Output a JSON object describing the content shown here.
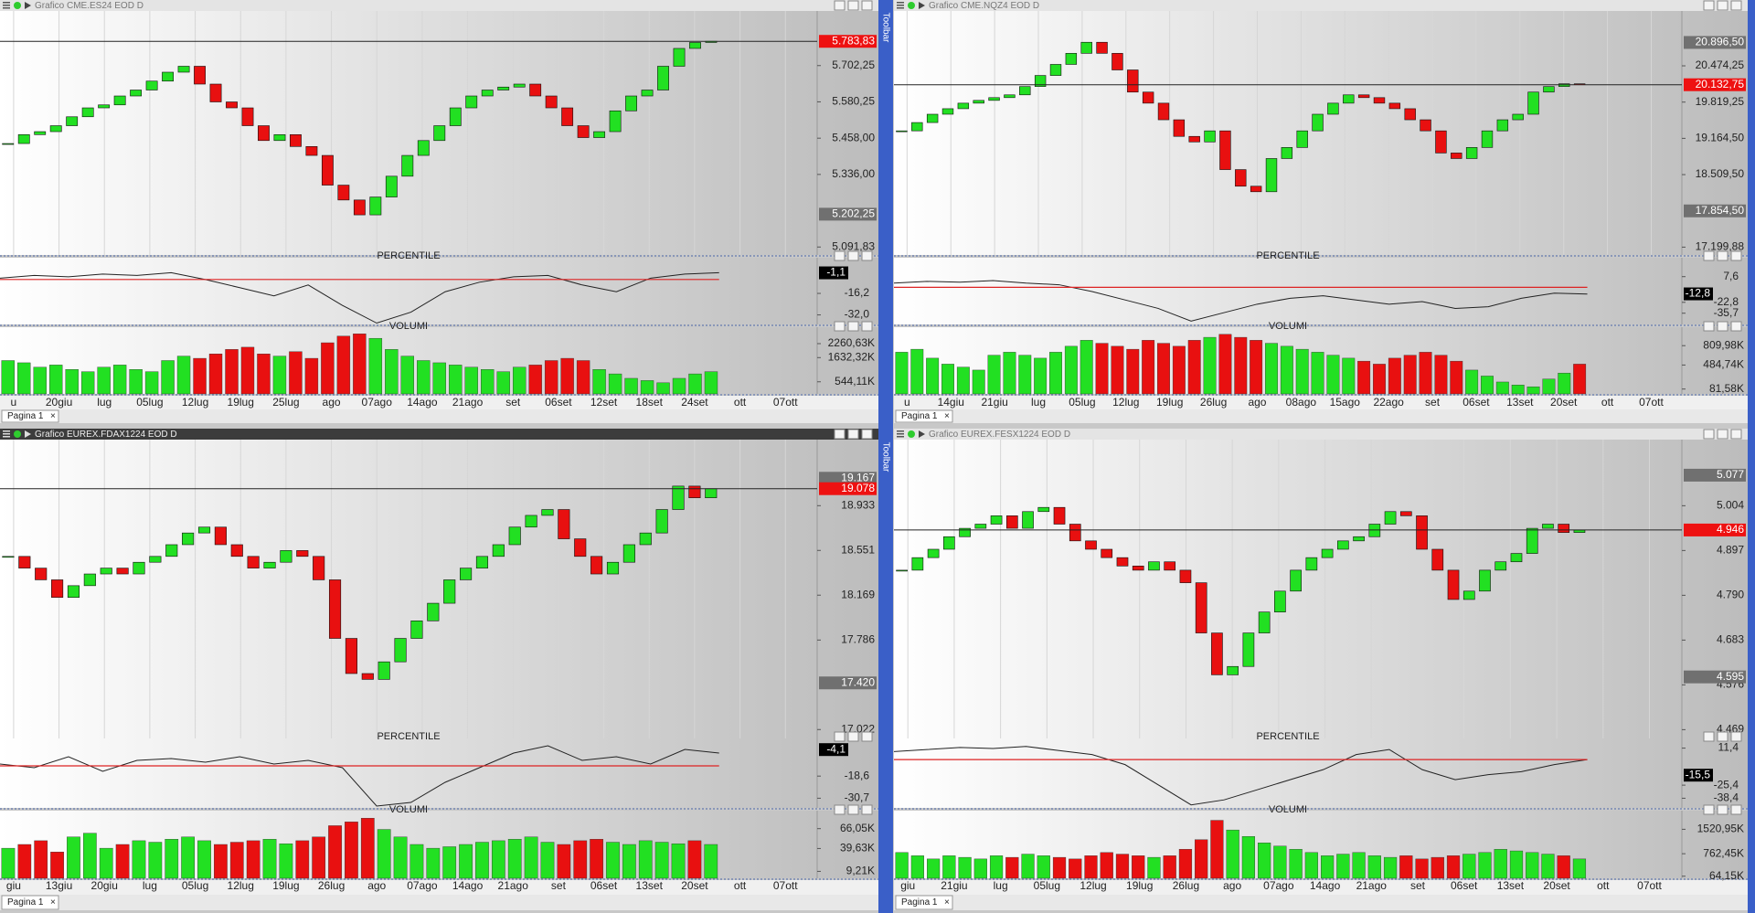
{
  "toolbar": "Toolbar",
  "panels": [
    {
      "title": "Grafico CME.ES24 EOD D",
      "price": {
        "ylim": [
          5065,
          5886
        ],
        "yticks": [
          {
            "value": 5702.25,
            "label": "5.702,25"
          },
          {
            "value": 5580.25,
            "label": "5.580,25"
          },
          {
            "value": 5458,
            "label": "5.458,00"
          },
          {
            "value": 5336,
            "label": "5.336,00"
          },
          {
            "value": 5091.83,
            "label": "5.091,83"
          }
        ],
        "last": {
          "value": 5783.83,
          "label": "5.783,83"
        },
        "marks": [
          {
            "value": 5202.25,
            "label": "5.202,25"
          }
        ],
        "closes": [
          5440,
          5470,
          5480,
          5500,
          5530,
          5560,
          5570,
          5600,
          5620,
          5650,
          5680,
          5700,
          5640,
          5580,
          5560,
          5500,
          5450,
          5470,
          5430,
          5400,
          5300,
          5250,
          5200,
          5260,
          5330,
          5400,
          5450,
          5500,
          5560,
          5600,
          5620,
          5630,
          5640,
          5600,
          5560,
          5500,
          5460,
          5480,
          5550,
          5600,
          5620,
          5700,
          5760,
          5780,
          5784
        ]
      },
      "percentile": {
        "label": "PERCENTILE",
        "plim": [
          -39,
          10
        ],
        "ticks": [
          {
            "value": -16.2,
            "label": "-16,2"
          },
          {
            "value": -32,
            "label": "-32,0"
          }
        ],
        "box": {
          "value": -1.1,
          "label": "-1,1"
        },
        "ref": -6,
        "values": [
          -5,
          -3,
          -4,
          -2,
          -3,
          -1,
          -6,
          -12,
          -18,
          -10,
          -25,
          -38,
          -30,
          -15,
          -8,
          -4,
          -3,
          -10,
          -15,
          -5,
          -2,
          -1
        ]
      },
      "volume": {
        "label": "VOLUMI",
        "vlim": [
          0,
          3000
        ],
        "ticks": [
          {
            "value": 2260.63,
            "label": "2260,63K"
          },
          {
            "value": 1632.32,
            "label": "1632,32K"
          },
          {
            "value": 544.11,
            "label": "544,11K"
          }
        ],
        "values": [
          1500,
          1400,
          1200,
          1300,
          1100,
          1000,
          1200,
          1300,
          1100,
          1000,
          1500,
          1700,
          1600,
          1800,
          2000,
          2100,
          1800,
          1700,
          1900,
          1600,
          2300,
          2600,
          2700,
          2500,
          2000,
          1700,
          1500,
          1400,
          1300,
          1200,
          1100,
          1000,
          1200,
          1300,
          1500,
          1600,
          1500,
          1100,
          900,
          700,
          600,
          500,
          700,
          900,
          1000
        ]
      },
      "dates": [
        "u",
        "20giu",
        "lug",
        "05lug",
        "12lug",
        "19lug",
        "25lug",
        "ago",
        "07ago",
        "14ago",
        "21ago",
        "set",
        "06set",
        "12set",
        "18set",
        "24set",
        "ott",
        "07ott"
      ],
      "tab": {
        "label": "Pagina 1",
        "close": "×"
      }
    },
    {
      "title": "Grafico CME.NQZ4 EOD D",
      "price": {
        "ylim": [
          17058,
          21465
        ],
        "yticks": [
          {
            "value": 20474.25,
            "label": "20.474,25"
          },
          {
            "value": 19819.25,
            "label": "19.819,25"
          },
          {
            "value": 19164.5,
            "label": "19.164,50"
          },
          {
            "value": 18509.5,
            "label": "18.509,50"
          },
          {
            "value": 17199.88,
            "label": "17.199,88"
          }
        ],
        "last": {
          "value": 20132.75,
          "label": "20.132,75"
        },
        "marks": [
          {
            "value": 20896.5,
            "label": "20.896,50"
          },
          {
            "value": 17854.5,
            "label": "17.854,50"
          }
        ],
        "closes": [
          19300,
          19450,
          19600,
          19700,
          19800,
          19850,
          19900,
          19950,
          20100,
          20300,
          20500,
          20700,
          20900,
          20700,
          20400,
          20000,
          19800,
          19500,
          19200,
          19100,
          19300,
          18600,
          18300,
          18200,
          18800,
          19000,
          19300,
          19600,
          19800,
          19950,
          19900,
          19800,
          19700,
          19500,
          19300,
          18900,
          18800,
          19000,
          19300,
          19500,
          19600,
          20000,
          20100,
          20150,
          20133
        ]
      },
      "percentile": {
        "label": "PERCENTILE",
        "plim": [
          -49,
          30
        ],
        "ticks": [
          {
            "value": 7.6,
            "label": "7,6"
          },
          {
            "value": -22.8,
            "label": "-22,8"
          },
          {
            "value": -35.7,
            "label": "-35,7"
          }
        ],
        "box": {
          "value": -12.8,
          "label": "-12,8"
        },
        "ref": -5,
        "values": [
          0,
          2,
          1,
          3,
          0,
          -2,
          -10,
          -20,
          -30,
          -45,
          -35,
          -25,
          -18,
          -15,
          -20,
          -25,
          -22,
          -30,
          -28,
          -18,
          -12,
          -13
        ]
      },
      "volume": {
        "label": "VOLUMI",
        "vlim": [
          0,
          1120
        ],
        "ticks": [
          {
            "value": 809.98,
            "label": "809,98K"
          },
          {
            "value": 484.74,
            "label": "484,74K"
          },
          {
            "value": 81.58,
            "label": "81,58K"
          }
        ],
        "values": [
          700,
          750,
          600,
          500,
          450,
          400,
          650,
          700,
          650,
          600,
          700,
          800,
          900,
          850,
          800,
          750,
          900,
          850,
          800,
          900,
          950,
          1000,
          950,
          900,
          850,
          800,
          750,
          700,
          650,
          600,
          550,
          500,
          600,
          650,
          700,
          650,
          550,
          400,
          300,
          200,
          150,
          120,
          250,
          350,
          500
        ]
      },
      "dates": [
        "u",
        "14giu",
        "21giu",
        "lug",
        "05lug",
        "12lug",
        "19lug",
        "26lug",
        "ago",
        "08ago",
        "15ago",
        "22ago",
        "set",
        "06set",
        "13set",
        "20set",
        "ott",
        "07ott"
      ],
      "tab": {
        "label": "Pagina 1",
        "close": "×"
      }
    },
    {
      "title": "Grafico EUREX.FDAX1224 EOD D",
      "price": {
        "ylim": [
          16946,
          19497
        ],
        "yticks": [
          {
            "value": 18933,
            "label": "18.933"
          },
          {
            "value": 18551,
            "label": "18.551"
          },
          {
            "value": 18169,
            "label": "18.169"
          },
          {
            "value": 17786,
            "label": "17.786"
          },
          {
            "value": 17022,
            "label": "17.022"
          }
        ],
        "last": {
          "value": 19078,
          "label": "19.078"
        },
        "marks": [
          {
            "value": 19167,
            "label": "19.167"
          },
          {
            "value": 17420,
            "label": "17.420"
          }
        ],
        "closes": [
          18500,
          18400,
          18300,
          18150,
          18250,
          18350,
          18400,
          18350,
          18450,
          18500,
          18600,
          18700,
          18750,
          18600,
          18500,
          18400,
          18450,
          18550,
          18500,
          18300,
          17800,
          17500,
          17450,
          17600,
          17800,
          17950,
          18100,
          18300,
          18400,
          18500,
          18600,
          18750,
          18850,
          18900,
          18650,
          18500,
          18350,
          18450,
          18600,
          18700,
          18900,
          19100,
          19000,
          19078
        ]
      },
      "percentile": {
        "label": "PERCENTILE",
        "plim": [
          -36,
          2
        ],
        "ticks": [
          {
            "value": -18.6,
            "label": "-18,6"
          },
          {
            "value": -30.7,
            "label": "-30,7"
          }
        ],
        "box": {
          "value": -4.1,
          "label": "-4,1"
        },
        "ref": -13,
        "values": [
          -12,
          -14,
          -8,
          -16,
          -10,
          -9,
          -11,
          -8,
          -12,
          -10,
          -14,
          -35,
          -33,
          -22,
          -14,
          -6,
          -2,
          -10,
          -8,
          -12,
          -4,
          -6
        ]
      },
      "volume": {
        "label": "VOLUMI",
        "vlim": [
          0,
          90
        ],
        "ticks": [
          {
            "value": 66.05,
            "label": "66,05K"
          },
          {
            "value": 39.63,
            "label": "39,63K"
          },
          {
            "value": 9.21,
            "label": "9,21K"
          }
        ],
        "values": [
          40,
          45,
          50,
          35,
          55,
          60,
          40,
          45,
          50,
          48,
          52,
          55,
          50,
          45,
          48,
          50,
          52,
          46,
          50,
          55,
          70,
          75,
          80,
          65,
          55,
          45,
          40,
          42,
          45,
          48,
          50,
          52,
          55,
          48,
          45,
          50,
          52,
          48,
          45,
          50,
          48,
          46,
          50,
          45
        ]
      },
      "dates": [
        "giu",
        "13giu",
        "20giu",
        "lug",
        "05lug",
        "12lug",
        "19lug",
        "26lug",
        "ago",
        "07ago",
        "14ago",
        "21ago",
        "set",
        "06set",
        "13set",
        "20set",
        "ott",
        "07ott"
      ],
      "tab": {
        "label": "Pagina 1",
        "close": "×"
      }
    },
    {
      "title": "Grafico EUREX.FESX1224 EOD D",
      "price": {
        "ylim": [
          4448,
          5162
        ],
        "yticks": [
          {
            "value": 5004,
            "label": "5.004"
          },
          {
            "value": 4897,
            "label": "4.897"
          },
          {
            "value": 4790,
            "label": "4.790"
          },
          {
            "value": 4683,
            "label": "4.683"
          },
          {
            "value": 4576,
            "label": "4.576"
          },
          {
            "value": 4469,
            "label": "4.469"
          }
        ],
        "last": {
          "value": 4946,
          "label": "4.946"
        },
        "marks": [
          {
            "value": 5077,
            "label": "5.077"
          },
          {
            "value": 4595,
            "label": "4.595"
          }
        ],
        "closes": [
          4850,
          4880,
          4900,
          4930,
          4950,
          4960,
          4980,
          4950,
          4990,
          5000,
          4960,
          4920,
          4900,
          4880,
          4860,
          4850,
          4870,
          4850,
          4820,
          4700,
          4600,
          4620,
          4700,
          4750,
          4800,
          4850,
          4880,
          4900,
          4920,
          4930,
          4960,
          4990,
          4980,
          4900,
          4850,
          4780,
          4800,
          4850,
          4870,
          4890,
          4950,
          4960,
          4940,
          4946
        ]
      },
      "percentile": {
        "label": "PERCENTILE",
        "plim": [
          -48,
          21
        ],
        "ticks": [
          {
            "value": 11.4,
            "label": "11,4"
          },
          {
            "value": -25.4,
            "label": "-25,4"
          },
          {
            "value": -38.4,
            "label": "-38,4"
          }
        ],
        "box": {
          "value": -15.5,
          "label": "-15,5"
        },
        "ref": 0,
        "values": [
          8,
          10,
          12,
          11,
          13,
          9,
          5,
          -5,
          -25,
          -45,
          -40,
          -30,
          -20,
          -10,
          5,
          10,
          -10,
          -20,
          -15,
          -12,
          -5,
          0
        ]
      },
      "volume": {
        "label": "VOLUMI",
        "vlim": [
          0,
          2100
        ],
        "ticks": [
          {
            "value": 1520.95,
            "label": "1520,95K"
          },
          {
            "value": 762.45,
            "label": "762,45K"
          },
          {
            "value": 64.15,
            "label": "64,15K"
          }
        ],
        "values": [
          800,
          700,
          600,
          700,
          650,
          600,
          700,
          650,
          750,
          700,
          650,
          600,
          700,
          800,
          750,
          700,
          650,
          700,
          900,
          1200,
          1800,
          1500,
          1300,
          1100,
          1000,
          900,
          800,
          700,
          750,
          800,
          700,
          650,
          700,
          600,
          650,
          700,
          750,
          800,
          900,
          850,
          800,
          750,
          700,
          600
        ]
      },
      "dates": [
        "giu",
        "21giu",
        "lug",
        "05lug",
        "12lug",
        "19lug",
        "26lug",
        "ago",
        "07ago",
        "14ago",
        "21ago",
        "set",
        "06set",
        "13set",
        "20set",
        "ott",
        "07ott"
      ],
      "tab": {
        "label": "Pagina 1",
        "close": "×"
      }
    }
  ]
}
